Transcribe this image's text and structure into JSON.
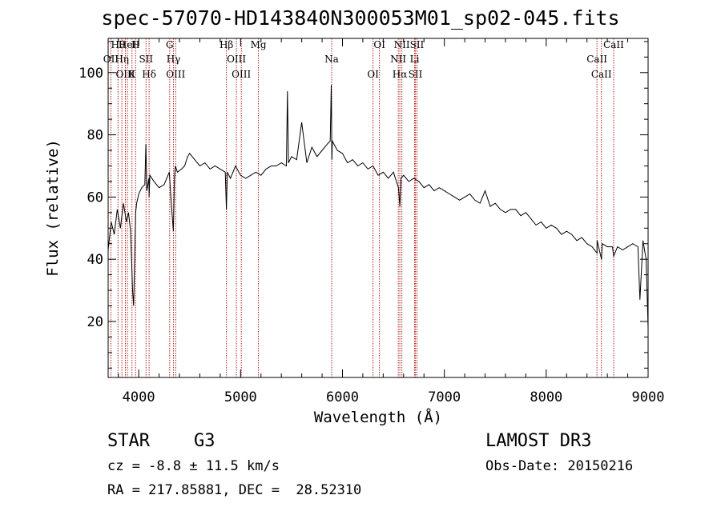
{
  "chart_data": {
    "type": "line",
    "title": "spec-57070-HD143840N300053M01_sp02-045.fits",
    "xlabel": "Wavelength (Å)",
    "ylabel": "Flux (relative)",
    "xlim": [
      3700,
      9000
    ],
    "ylim": [
      2,
      111
    ],
    "xticks": [
      4000,
      5000,
      6000,
      7000,
      8000,
      9000
    ],
    "yticks": [
      20,
      40,
      60,
      80,
      100
    ],
    "series": [
      {
        "name": "Flux",
        "x": [
          3700,
          3730,
          3760,
          3790,
          3820,
          3850,
          3880,
          3900,
          3920,
          3940,
          3950,
          3960,
          3970,
          3980,
          4000,
          4030,
          4060,
          4070,
          4080,
          4100,
          4102,
          4110,
          4150,
          4200,
          4250,
          4300,
          4320,
          4340,
          4350,
          4360,
          4380,
          4420,
          4450,
          4480,
          4500,
          4550,
          4600,
          4650,
          4700,
          4750,
          4800,
          4850,
          4861,
          4870,
          4900,
          4950,
          5000,
          5050,
          5100,
          5150,
          5200,
          5250,
          5300,
          5350,
          5400,
          5450,
          5460,
          5470,
          5500,
          5550,
          5600,
          5650,
          5700,
          5750,
          5800,
          5850,
          5880,
          5890,
          5896,
          5900,
          5950,
          6000,
          6050,
          6100,
          6150,
          6200,
          6250,
          6300,
          6350,
          6400,
          6450,
          6500,
          6550,
          6563,
          6575,
          6600,
          6650,
          6700,
          6750,
          6800,
          6850,
          6900,
          6950,
          7000,
          7050,
          7100,
          7150,
          7200,
          7250,
          7300,
          7350,
          7400,
          7450,
          7500,
          7550,
          7600,
          7650,
          7700,
          7750,
          7800,
          7850,
          7900,
          7950,
          8000,
          8050,
          8100,
          8150,
          8200,
          8250,
          8300,
          8350,
          8400,
          8450,
          8498,
          8500,
          8542,
          8550,
          8600,
          8650,
          8662,
          8700,
          8750,
          8800,
          8850,
          8900,
          8920,
          8950,
          8980,
          9000
        ],
        "values": [
          43,
          52,
          48,
          56,
          50,
          58,
          52,
          55,
          49,
          30,
          25,
          40,
          55,
          58,
          61,
          63,
          64,
          77,
          62,
          66,
          60,
          67,
          65,
          63,
          64,
          68,
          58,
          49,
          66,
          70,
          68,
          69,
          70,
          73,
          74,
          72,
          70,
          71,
          69,
          70,
          69,
          68,
          56,
          68,
          66,
          70,
          67,
          66,
          67,
          68,
          67,
          69,
          70,
          70,
          71,
          70,
          94,
          71,
          73,
          72,
          84,
          71,
          76,
          73,
          75,
          77,
          78,
          96,
          72,
          78,
          75,
          74,
          71,
          72,
          70,
          71,
          69,
          70,
          67,
          68,
          66,
          68,
          63,
          57,
          66,
          67,
          65,
          66,
          65,
          63,
          64,
          62,
          63,
          62,
          61,
          60,
          59,
          60,
          61,
          59,
          58,
          62,
          57,
          58,
          56,
          55,
          56,
          56,
          54,
          55,
          53,
          51,
          52,
          50,
          51,
          50,
          48,
          49,
          48,
          46,
          47,
          45,
          44,
          42,
          46,
          40,
          45,
          44,
          44,
          41,
          44,
          43,
          44,
          45,
          44,
          27,
          46,
          40,
          18
        ]
      }
    ],
    "lines": [
      {
        "name": "Hθ",
        "wavelength": 3797
      },
      {
        "name": "OII",
        "wavelength": 3727
      },
      {
        "name": "OIII",
        "wavelength": 3869
      },
      {
        "name": "HeI",
        "wavelength": 3889
      },
      {
        "name": "Hη",
        "wavelength": 3835
      },
      {
        "name": "K",
        "wavelength": 3934
      },
      {
        "name": "H",
        "wavelength": 3969
      },
      {
        "name": "SII",
        "wavelength": 4072
      },
      {
        "name": "Hδ",
        "wavelength": 4102
      },
      {
        "name": "G",
        "wavelength": 4304
      },
      {
        "name": "Hγ",
        "wavelength": 4341
      },
      {
        "name": "OIII",
        "wavelength": 4363
      },
      {
        "name": "Hβ",
        "wavelength": 4861
      },
      {
        "name": "OIII",
        "wavelength": 4959
      },
      {
        "name": "OIII",
        "wavelength": 5007
      },
      {
        "name": "Mg",
        "wavelength": 5175
      },
      {
        "name": "Na",
        "wavelength": 5894
      },
      {
        "name": "OI",
        "wavelength": 6300
      },
      {
        "name": "OI",
        "wavelength": 6363
      },
      {
        "name": "NII",
        "wavelength": 6548
      },
      {
        "name": "Hα",
        "wavelength": 6563
      },
      {
        "name": "NII",
        "wavelength": 6583
      },
      {
        "name": "Li",
        "wavelength": 6708
      },
      {
        "name": "SII",
        "wavelength": 6716
      },
      {
        "name": "SII",
        "wavelength": 6731
      },
      {
        "name": "CaII",
        "wavelength": 8498
      },
      {
        "name": "CaII",
        "wavelength": 8542
      },
      {
        "name": "CaII",
        "wavelength": 8662
      }
    ]
  },
  "info": {
    "class_label": "STAR",
    "subclass_label": "G3",
    "redshift_text": "cz = -8.8 ± 11.5 km/s",
    "coords_text": "RA = 217.85881, DEC =  28.52310",
    "survey_text": "LAMOST DR3",
    "obs_date_text": "Obs-Date: 20150216"
  },
  "colors": {
    "line_marker": "#b22222",
    "spectrum": "#000000"
  }
}
